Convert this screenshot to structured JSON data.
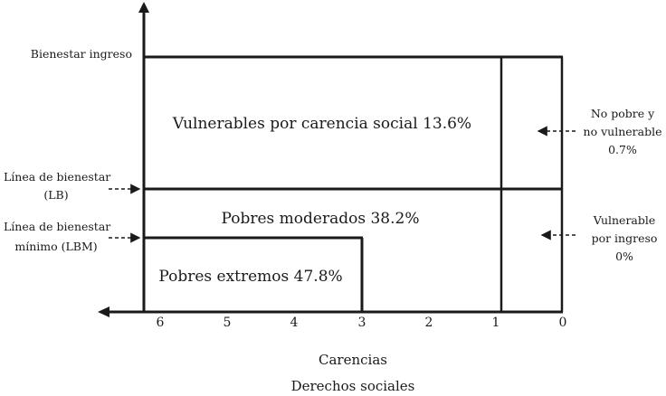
{
  "labels": {
    "bienestar_ingreso": "Bienestar ingreso",
    "lb_line1": "Línea de bienestar",
    "lb_line2": "(LB)",
    "lbm_line1": "Línea de bienestar",
    "lbm_line2": "mínimo (LBM)"
  },
  "regions": {
    "vulnerables_carencia": "Vulnerables por carencia social 13.6%",
    "pobres_moderados": "Pobres moderados 38.2%",
    "pobres_extremos": "Pobres extremos 47.8%"
  },
  "side_notes": {
    "no_pobre_line1": "No pobre y",
    "no_pobre_line2": "no vulnerable",
    "no_pobre_line3": "0.7%",
    "vulnerable_ingreso_line1": "Vulnerable",
    "vulnerable_ingreso_line2": "por ingreso",
    "vulnerable_ingreso_line3": "0%"
  },
  "x_axis": {
    "ticks": [
      "6",
      "5",
      "4",
      "3",
      "2",
      "1",
      "0"
    ],
    "title_line1": "Carencias",
    "title_line2": "Derechos sociales"
  }
}
